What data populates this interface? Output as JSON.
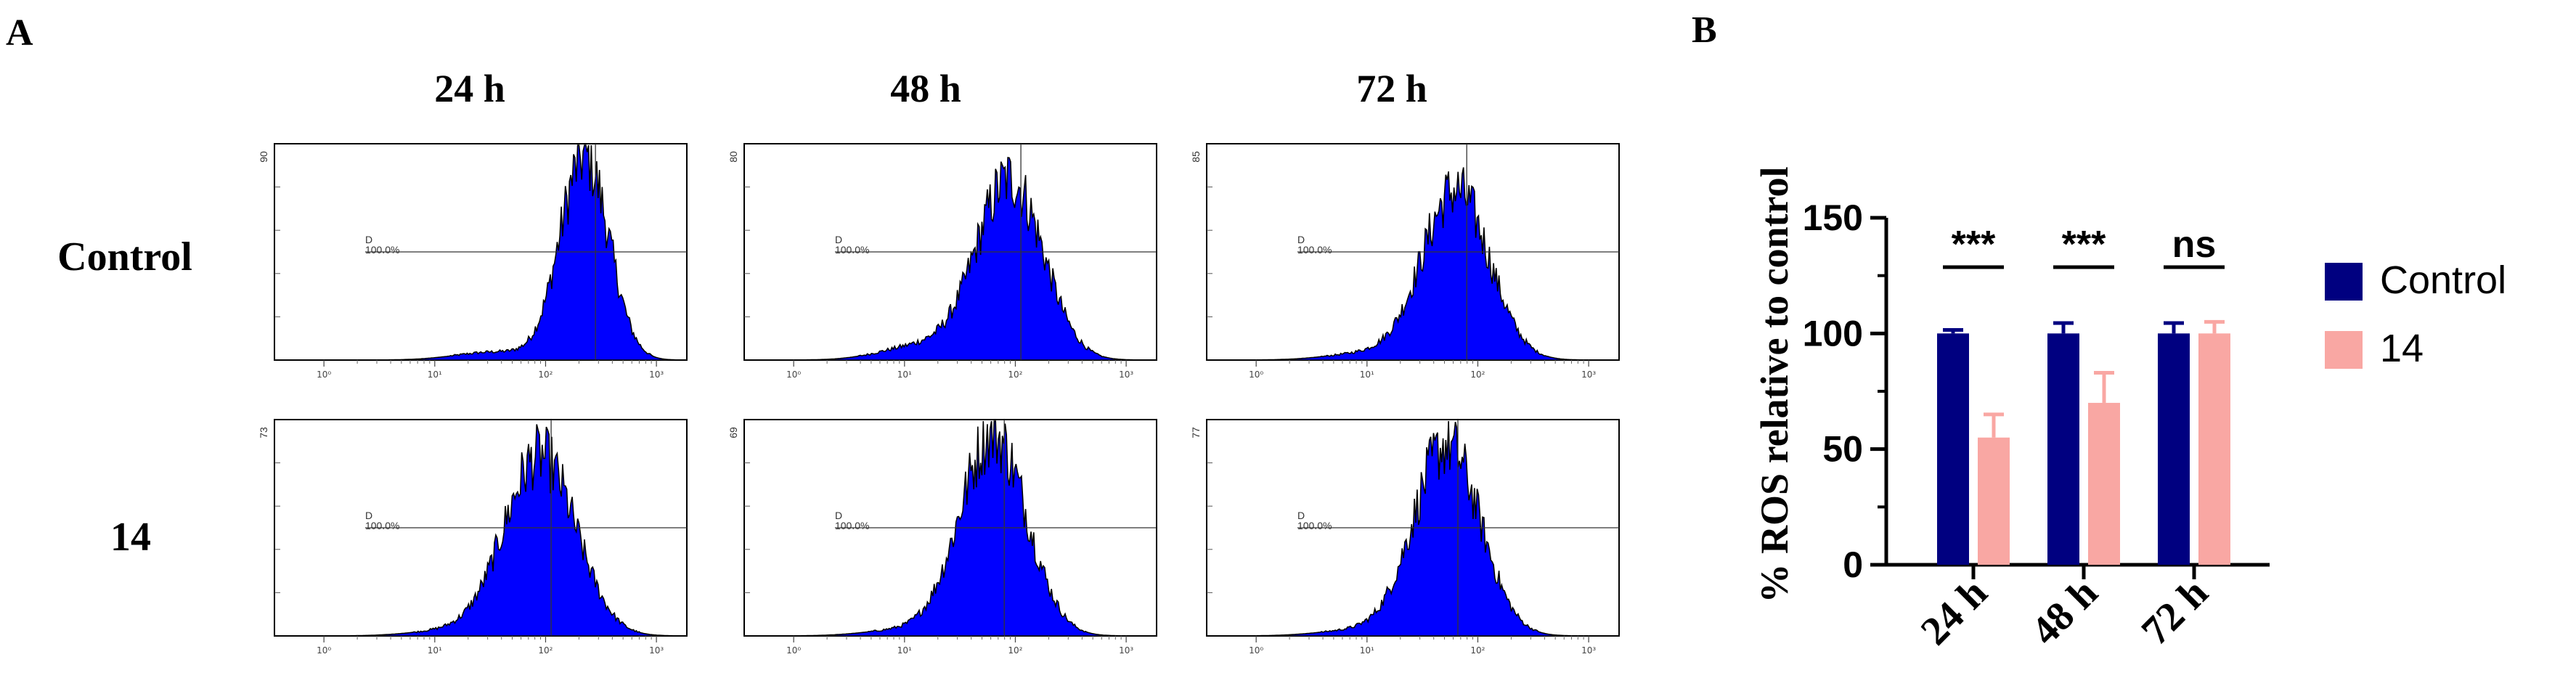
{
  "panels": {
    "A": {
      "label": "A",
      "col_headers": [
        "24 h",
        "48 h",
        "72 h"
      ],
      "row_headers": [
        "Control",
        "14"
      ],
      "gate_label": "D",
      "gate_percent": "100.0%",
      "x_tick_labels": [
        "10⁰",
        "10¹",
        "10²",
        "10³"
      ],
      "histogram_fill": "#0000ff",
      "histogram_outline": "#000000",
      "histograms": [
        {
          "row": "Control",
          "time": "24 h",
          "ymax_label": "90",
          "peak_log": 2.35,
          "spread": 0.22,
          "height": 0.96,
          "left_tail": 0.04
        },
        {
          "row": "Control",
          "time": "48 h",
          "ymax_label": "80",
          "peak_log": 1.95,
          "spread": 0.3,
          "height": 0.85,
          "left_tail": 0.08
        },
        {
          "row": "Control",
          "time": "72 h",
          "ymax_label": "85",
          "peak_log": 1.8,
          "spread": 0.3,
          "height": 0.8,
          "left_tail": 0.04
        },
        {
          "row": "14",
          "time": "24 h",
          "ymax_label": "73",
          "peak_log": 1.95,
          "spread": 0.32,
          "height": 0.85,
          "left_tail": 0.03
        },
        {
          "row": "14",
          "time": "48 h",
          "ymax_label": "69",
          "peak_log": 1.8,
          "spread": 0.3,
          "height": 0.95,
          "left_tail": 0.03
        },
        {
          "row": "14",
          "time": "72 h",
          "ymax_label": "77",
          "peak_log": 1.72,
          "spread": 0.3,
          "height": 0.9,
          "left_tail": 0.03
        }
      ]
    },
    "B": {
      "label": "B"
    }
  },
  "chart_data": {
    "type": "bar",
    "categories": [
      "24 h",
      "48 h",
      "72 h"
    ],
    "series": [
      {
        "name": "Control",
        "color": "#000080",
        "values": [
          100,
          100,
          100
        ],
        "errors": [
          1.5,
          4.5,
          4.5
        ]
      },
      {
        "name": "14",
        "color": "#f9a7a3",
        "values": [
          55,
          70,
          100
        ],
        "errors": [
          10,
          13,
          5
        ]
      }
    ],
    "ylabel": "% ROS relative to control",
    "ylim": [
      0,
      150
    ],
    "yticks": [
      0,
      50,
      100,
      150
    ],
    "significance": [
      "***",
      "***",
      "ns"
    ],
    "legend": "right",
    "grid": false
  }
}
